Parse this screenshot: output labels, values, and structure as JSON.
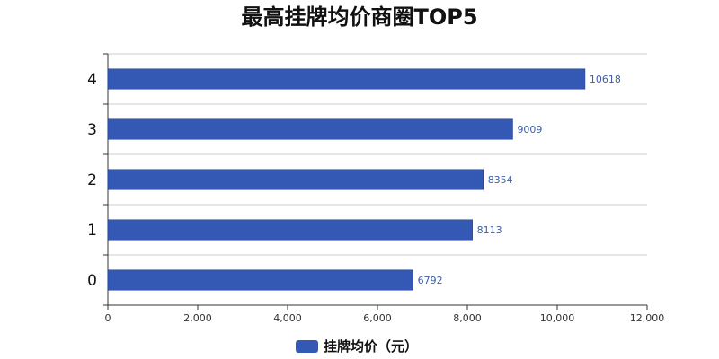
{
  "chart_data": {
    "type": "bar",
    "orientation": "horizontal",
    "title": "最高挂牌均价商圈TOP5",
    "categories": [
      "0",
      "1",
      "2",
      "3",
      "4"
    ],
    "series": [
      {
        "name": "挂牌均价（元）",
        "values": [
          6792,
          8113,
          8354,
          9009,
          10618
        ]
      }
    ],
    "xlim": [
      0,
      12000
    ],
    "xticks": [
      0,
      2000,
      4000,
      6000,
      8000,
      10000,
      12000
    ],
    "xtick_labels": [
      "0",
      "2,000",
      "4,000",
      "6,000",
      "8,000",
      "10,000",
      "12,000"
    ],
    "grid": "horizontal",
    "legend_position": "bottom-center",
    "bar_color": "#3459b5",
    "data_label_color": "#3b5fa8"
  }
}
